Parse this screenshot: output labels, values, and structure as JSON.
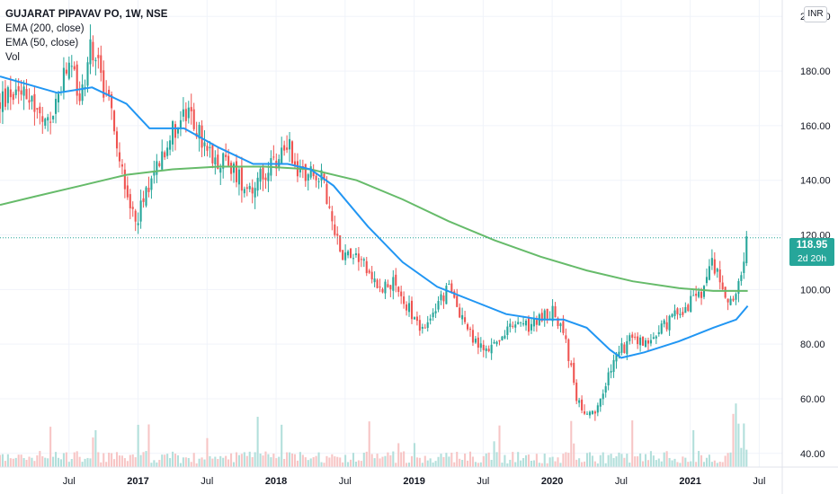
{
  "legend": {
    "title": "GUJARAT PIPAVAV PO, 1W, NSE",
    "ema200": "EMA (200, close)",
    "ema50": "EMA (50, close)",
    "vol": "Vol"
  },
  "currency": "INR",
  "last_price": {
    "value": "118.95",
    "countdown": "2d 20h",
    "level": 118.95
  },
  "colors": {
    "up": "#26a69a",
    "down": "#ef5350",
    "ema50": "#2196f3",
    "ema200": "#66bb6a",
    "vol_up": "#b2dfdb",
    "vol_down": "#f7c5c5",
    "grid": "#f0f3fa",
    "axis_text": "#131722"
  },
  "chart_data": {
    "type": "candlestick",
    "x_ticks": [
      "Jul",
      "2017",
      "Jul",
      "2018",
      "Jul",
      "2019",
      "Jul",
      "2020",
      "Jul",
      "2021",
      "Jul"
    ],
    "y_ticks": [
      "200.00",
      "180.00",
      "160.00",
      "140.00",
      "120.00",
      "100.00",
      "80.00",
      "60.00",
      "40.00"
    ],
    "y_range": [
      35,
      206
    ],
    "x_range": [
      "2016-01",
      "2021-09"
    ],
    "ohlc_close_path": [
      [
        "2016-01",
        168
      ],
      [
        "2016-03",
        176
      ],
      [
        "2016-05",
        158
      ],
      [
        "2016-07",
        182
      ],
      [
        "2016-08",
        170
      ],
      [
        "2016-09",
        190
      ],
      [
        "2016-10",
        175
      ],
      [
        "2016-11",
        160
      ],
      [
        "2016-12",
        132
      ],
      [
        "2017-01",
        127
      ],
      [
        "2017-02",
        140
      ],
      [
        "2017-03",
        150
      ],
      [
        "2017-04",
        158
      ],
      [
        "2017-05",
        164
      ],
      [
        "2017-06",
        160
      ],
      [
        "2017-07",
        150
      ],
      [
        "2017-08",
        148
      ],
      [
        "2017-09",
        145
      ],
      [
        "2017-10",
        140
      ],
      [
        "2017-11",
        138
      ],
      [
        "2017-12",
        142
      ],
      [
        "2018-01",
        146
      ],
      [
        "2018-02",
        155
      ],
      [
        "2018-03",
        142
      ],
      [
        "2018-04",
        145
      ],
      [
        "2018-05",
        140
      ],
      [
        "2018-06",
        122
      ],
      [
        "2018-07",
        112
      ],
      [
        "2018-08",
        114
      ],
      [
        "2018-09",
        108
      ],
      [
        "2018-10",
        100
      ],
      [
        "2018-11",
        103
      ],
      [
        "2018-12",
        96
      ],
      [
        "2019-01",
        90
      ],
      [
        "2019-02",
        84
      ],
      [
        "2019-03",
        95
      ],
      [
        "2019-04",
        100
      ],
      [
        "2019-05",
        92
      ],
      [
        "2019-06",
        82
      ],
      [
        "2019-07",
        78
      ],
      [
        "2019-08",
        80
      ],
      [
        "2019-09",
        84
      ],
      [
        "2019-10",
        88
      ],
      [
        "2019-11",
        86
      ],
      [
        "2019-12",
        90
      ],
      [
        "2020-01",
        92
      ],
      [
        "2020-02",
        85
      ],
      [
        "2020-03",
        62
      ],
      [
        "2020-04",
        52
      ],
      [
        "2020-05",
        56
      ],
      [
        "2020-06",
        70
      ],
      [
        "2020-07",
        78
      ],
      [
        "2020-08",
        82
      ],
      [
        "2020-09",
        80
      ],
      [
        "2020-10",
        84
      ],
      [
        "2020-11",
        88
      ],
      [
        "2020-12",
        92
      ],
      [
        "2021-01",
        95
      ],
      [
        "2021-02",
        98
      ],
      [
        "2021-03",
        110
      ],
      [
        "2021-04",
        98
      ],
      [
        "2021-05",
        96
      ],
      [
        "2021-06",
        119
      ]
    ],
    "ema50": [
      [
        "2016-01",
        178
      ],
      [
        "2016-06",
        172
      ],
      [
        "2016-09",
        174
      ],
      [
        "2016-12",
        168
      ],
      [
        "2017-02",
        159
      ],
      [
        "2017-05",
        159
      ],
      [
        "2017-08",
        152
      ],
      [
        "2017-11",
        146
      ],
      [
        "2018-02",
        146
      ],
      [
        "2018-04",
        144
      ],
      [
        "2018-06",
        138
      ],
      [
        "2018-09",
        123
      ],
      [
        "2018-12",
        110
      ],
      [
        "2019-03",
        101
      ],
      [
        "2019-06",
        96
      ],
      [
        "2019-09",
        91
      ],
      [
        "2019-12",
        89
      ],
      [
        "2020-02",
        89
      ],
      [
        "2020-04",
        86
      ],
      [
        "2020-06",
        78
      ],
      [
        "2020-07",
        75
      ],
      [
        "2020-09",
        77
      ],
      [
        "2020-12",
        81
      ],
      [
        "2021-03",
        86
      ],
      [
        "2021-05",
        89
      ],
      [
        "2021-06",
        94
      ]
    ],
    "ema200": [
      [
        "2016-01",
        131
      ],
      [
        "2016-04",
        134
      ],
      [
        "2016-08",
        138
      ],
      [
        "2016-12",
        142
      ],
      [
        "2017-04",
        144
      ],
      [
        "2017-08",
        145
      ],
      [
        "2017-12",
        145
      ],
      [
        "2018-04",
        144
      ],
      [
        "2018-08",
        140
      ],
      [
        "2018-12",
        133
      ],
      [
        "2019-04",
        125
      ],
      [
        "2019-08",
        118
      ],
      [
        "2019-12",
        112
      ],
      [
        "2020-04",
        107
      ],
      [
        "2020-08",
        103
      ],
      [
        "2020-12",
        100.5
      ],
      [
        "2021-03",
        99.5
      ],
      [
        "2021-06",
        99.5
      ]
    ]
  }
}
